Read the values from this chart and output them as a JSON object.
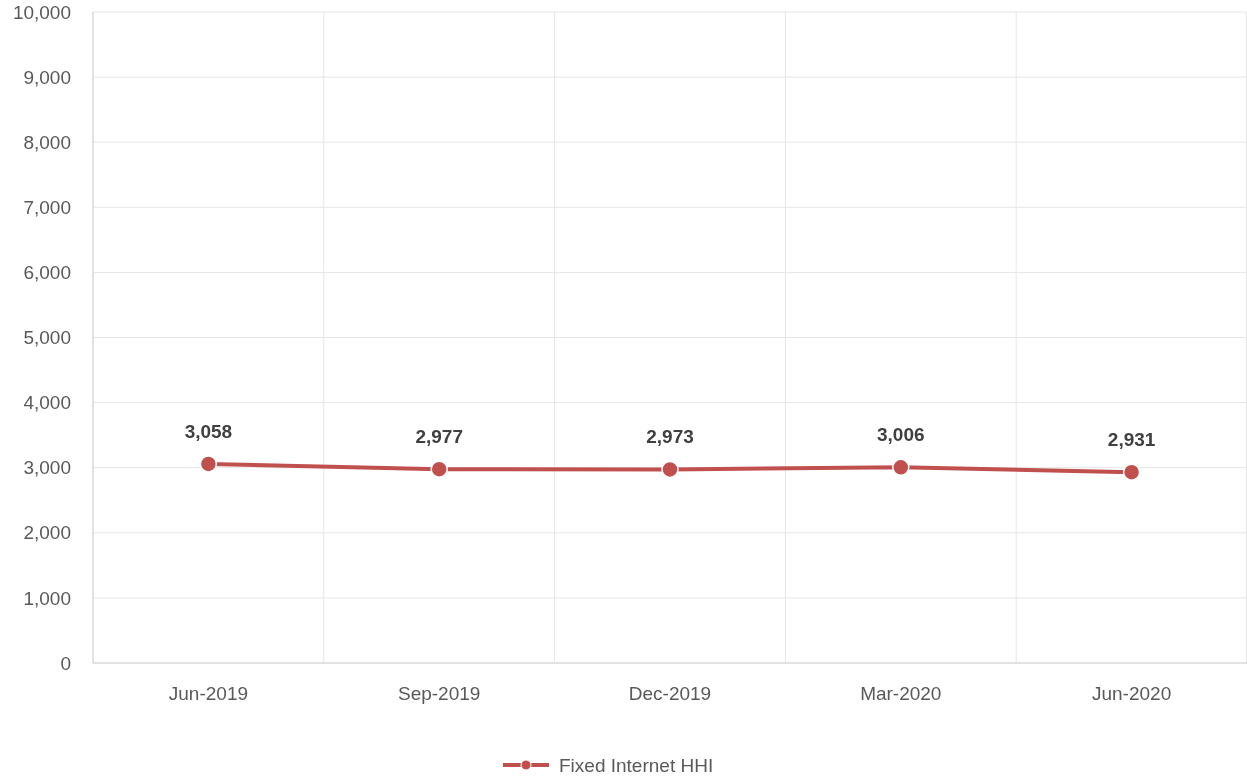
{
  "chart_data": {
    "type": "line",
    "categories": [
      "Jun-2019",
      "Sep-2019",
      "Dec-2019",
      "Mar-2020",
      "Jun-2020"
    ],
    "series": [
      {
        "name": "Fixed Internet HHI",
        "color": "#c0504d",
        "values": [
          3058,
          2977,
          2973,
          3006,
          2931
        ]
      }
    ],
    "ylim": [
      0,
      10000
    ],
    "yticks": [
      {
        "value": 0,
        "label": "0"
      },
      {
        "value": 1000,
        "label": "1,000"
      },
      {
        "value": 2000,
        "label": "2,000"
      },
      {
        "value": 3000,
        "label": "3,000"
      },
      {
        "value": 4000,
        "label": "4,000"
      },
      {
        "value": 5000,
        "label": "5,000"
      },
      {
        "value": 6000,
        "label": "6,000"
      },
      {
        "value": 7000,
        "label": "7,000"
      },
      {
        "value": 8000,
        "label": "8,000"
      },
      {
        "value": 9000,
        "label": "9,000"
      },
      {
        "value": 10000,
        "label": "10,000"
      }
    ],
    "value_labels": [
      "3,058",
      "2,977",
      "2,973",
      "3,006",
      "2,931"
    ],
    "grid": true,
    "legend": "bottom",
    "marker": "circle",
    "line_style": "solid"
  }
}
